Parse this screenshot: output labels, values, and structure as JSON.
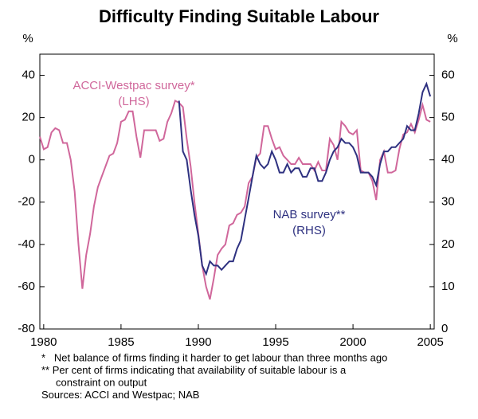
{
  "chart_data": {
    "type": "line",
    "title": "Difficulty Finding Suitable Labour",
    "y_unit": "%",
    "y2_unit": "%",
    "x": [
      1979.75,
      1980,
      1980.25,
      1980.5,
      1980.75,
      1981,
      1981.25,
      1981.5,
      1981.75,
      1982,
      1982.25,
      1982.5,
      1982.75,
      1983,
      1983.25,
      1983.5,
      1983.75,
      1984,
      1984.25,
      1984.5,
      1984.75,
      1985,
      1985.25,
      1985.5,
      1985.75,
      1986,
      1986.25,
      1986.5,
      1986.75,
      1987,
      1987.25,
      1987.5,
      1987.75,
      1988,
      1988.25,
      1988.5,
      1988.75,
      1989,
      1989.25,
      1989.5,
      1989.75,
      1990,
      1990.25,
      1990.5,
      1990.75,
      1991,
      1991.25,
      1991.5,
      1991.75,
      1992,
      1992.25,
      1992.5,
      1992.75,
      1993,
      1993.25,
      1993.5,
      1993.75,
      1994,
      1994.25,
      1994.5,
      1994.75,
      1995,
      1995.25,
      1995.5,
      1995.75,
      1996,
      1996.25,
      1996.5,
      1996.75,
      1997,
      1997.25,
      1997.5,
      1997.75,
      1998,
      1998.25,
      1998.5,
      1998.75,
      1999,
      1999.25,
      1999.5,
      1999.75,
      2000,
      2000.25,
      2000.5,
      2000.75,
      2001,
      2001.25,
      2001.5,
      2001.75,
      2002,
      2002.25,
      2002.5,
      2002.75,
      2003,
      2003.25,
      2003.5,
      2003.75,
      2004,
      2004.25,
      2004.5,
      2004.75,
      2005
    ],
    "series": [
      {
        "name": "ACCI-Westpac survey*",
        "sublabel": "(LHS)",
        "color": "#d0679b",
        "axis": "y",
        "values": [
          11,
          5,
          6,
          13,
          15,
          14,
          8,
          8,
          0,
          -15,
          -40,
          -61,
          -45,
          -35,
          -22,
          -13,
          -8,
          -3,
          2,
          3,
          8,
          18,
          19,
          23,
          23,
          11,
          1,
          14,
          14,
          14,
          14,
          9,
          10,
          18,
          22,
          28,
          27,
          25,
          10,
          -3,
          -20,
          -35,
          -50,
          -60,
          -66,
          -56,
          -45,
          -42,
          -40,
          -31,
          -30,
          -26,
          -25,
          -22,
          -11,
          -8,
          1,
          3,
          16,
          16,
          10,
          5,
          6,
          2,
          0,
          -2,
          -2,
          1,
          -2,
          -2,
          -2,
          -5,
          -1,
          -5,
          -5,
          10,
          7,
          0,
          18,
          16,
          13,
          12,
          14,
          -5,
          -6,
          -6,
          -10,
          -19,
          0,
          4,
          -6,
          -6,
          -5,
          5,
          12,
          13,
          17,
          13,
          19,
          26,
          19,
          18
        ]
      },
      {
        "name": "NAB survey**",
        "sublabel": "(RHS)",
        "color": "#2e3180",
        "axis": "y2",
        "values": [
          null,
          null,
          null,
          null,
          null,
          null,
          null,
          null,
          null,
          null,
          null,
          null,
          null,
          null,
          null,
          null,
          null,
          null,
          null,
          null,
          null,
          null,
          null,
          null,
          null,
          null,
          null,
          null,
          null,
          null,
          null,
          null,
          null,
          null,
          null,
          null,
          54,
          42,
          40,
          33,
          27,
          22,
          15,
          13,
          16,
          15,
          15,
          14,
          15,
          16,
          16,
          19,
          21,
          26,
          31,
          36,
          41,
          39,
          38,
          39,
          42,
          40,
          37,
          37,
          39,
          37,
          38,
          38,
          36,
          36,
          38,
          38,
          35,
          35,
          37,
          40,
          42,
          43,
          45,
          44,
          44,
          43,
          41,
          37,
          37,
          37,
          36,
          34,
          39,
          42,
          42,
          43,
          43,
          44,
          45,
          48,
          47,
          47,
          51,
          56,
          58,
          55
        ]
      }
    ],
    "xlim": [
      1979.75,
      2005.25
    ],
    "xticks": [
      1980,
      1985,
      1990,
      1995,
      2000,
      2005
    ],
    "ylim": [
      -80,
      50
    ],
    "yticks": [
      -80,
      -60,
      -40,
      -20,
      0,
      20,
      40
    ],
    "y2lim": [
      0,
      65
    ],
    "y2ticks": [
      0,
      10,
      20,
      30,
      40,
      50,
      60
    ],
    "grid": false,
    "notes": [
      "*   Net balance of firms finding it harder to get labour than three months ago",
      "** Per cent of firms indicating that availability of suitable labour is a",
      "     constraint on output",
      "Sources: ACCI and Westpac; NAB"
    ]
  }
}
